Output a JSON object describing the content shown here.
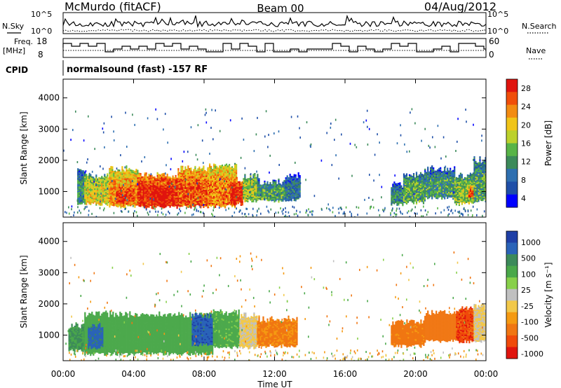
{
  "header": {
    "station": "McMurdo (fitACF)",
    "beam": "Beam 00",
    "date": "04/Aug/2012"
  },
  "strip_labels": {
    "nsky": "N.Sky",
    "nsearch": "N.Search",
    "freq_line1": "Freq.",
    "freq_line2": "[MHz]",
    "nave": "Nave",
    "cpid": "CPID",
    "cpid_value": "normalsound (fast) -157 RF",
    "noise_ticks": [
      "10^5",
      "10^0"
    ],
    "freq_ticks": [
      "18",
      "8"
    ],
    "nave_ticks": [
      "60",
      "0"
    ]
  },
  "colors": {
    "power_scale": [
      "#0000ff",
      "#1f4fa8",
      "#2e6fb0",
      "#3c8a5a",
      "#58b447",
      "#bcd12c",
      "#f0c419",
      "#f28b12",
      "#f04e0a",
      "#e0140e"
    ],
    "velocity_scale": [
      "#1f3fa6",
      "#2a63b8",
      "#3c8a5a",
      "#4aa84a",
      "#88d04a",
      "#c0c0c0",
      "#f2c84a",
      "#f59a12",
      "#f07612",
      "#f04a0a",
      "#e0140e"
    ],
    "ground_scatter": "#bdbdbd"
  },
  "chart_data": [
    {
      "type": "heatmap",
      "name": "power",
      "x_axis": {
        "label": "",
        "ticks": [
          "00:00",
          "04:00",
          "08:00",
          "12:00",
          "16:00",
          "20:00",
          "00:00"
        ],
        "range_hours": [
          0,
          24
        ]
      },
      "y_axis": {
        "label": "Slant Range [km]",
        "ticks": [
          1000,
          2000,
          3000,
          4000
        ],
        "range": [
          180,
          4600
        ]
      },
      "colorbar": {
        "label": "Power [dB]",
        "ticks": [
          "28",
          "24",
          "20",
          "16",
          "12",
          "8",
          "4"
        ],
        "range": [
          0,
          30
        ]
      },
      "regions": [
        {
          "t0": 0.8,
          "t1": 1.2,
          "r0": 600,
          "r1": 1700,
          "level": 10
        },
        {
          "t0": 1.2,
          "t1": 2.6,
          "r0": 600,
          "r1": 1500,
          "level": 18
        },
        {
          "t0": 2.6,
          "t1": 4.2,
          "r0": 520,
          "r1": 1700,
          "level": 22
        },
        {
          "t0": 3.0,
          "t1": 4.0,
          "r0": 650,
          "r1": 1200,
          "level": 27
        },
        {
          "t0": 4.2,
          "t1": 6.5,
          "r0": 500,
          "r1": 1500,
          "level": 28
        },
        {
          "t0": 5.0,
          "t1": 6.0,
          "r0": 600,
          "r1": 1300,
          "level": 30
        },
        {
          "t0": 6.5,
          "t1": 8.2,
          "r0": 520,
          "r1": 1700,
          "level": 25
        },
        {
          "t0": 8.2,
          "t1": 9.8,
          "r0": 520,
          "r1": 1800,
          "level": 23
        },
        {
          "t0": 9.5,
          "t1": 10.2,
          "r0": 600,
          "r1": 1400,
          "level": 28
        },
        {
          "t0": 10.2,
          "t1": 11.0,
          "r0": 700,
          "r1": 1500,
          "level": 16
        },
        {
          "t0": 11.0,
          "t1": 12.6,
          "r0": 700,
          "r1": 1300,
          "level": 12
        },
        {
          "t0": 12.6,
          "t1": 13.4,
          "r0": 750,
          "r1": 1500,
          "level": 8
        },
        {
          "t0": 18.6,
          "t1": 19.3,
          "r0": 600,
          "r1": 1200,
          "level": 10
        },
        {
          "t0": 19.3,
          "t1": 20.5,
          "r0": 650,
          "r1": 1500,
          "level": 13
        },
        {
          "t0": 20.5,
          "t1": 22.2,
          "r0": 800,
          "r1": 1700,
          "level": 11
        },
        {
          "t0": 22.2,
          "t1": 23.3,
          "r0": 600,
          "r1": 1500,
          "level": 15
        },
        {
          "t0": 23.0,
          "t1": 23.6,
          "r0": 800,
          "r1": 1100,
          "level": 26
        },
        {
          "t0": 23.3,
          "t1": 24.0,
          "r0": 700,
          "r1": 2000,
          "level": 12
        }
      ]
    },
    {
      "type": "heatmap",
      "name": "velocity",
      "x_axis": {
        "label": "Time UT",
        "ticks": [
          "00:00",
          "04:00",
          "08:00",
          "12:00",
          "16:00",
          "20:00",
          "00:00"
        ],
        "range_hours": [
          0,
          24
        ]
      },
      "y_axis": {
        "label": "Slant Range [km]",
        "ticks": [
          1000,
          2000,
          3000,
          4000
        ],
        "range": [
          180,
          4600
        ]
      },
      "colorbar": {
        "label": "Velocity [m s⁻¹]",
        "ticks": [
          "1000",
          "500",
          "100",
          "25",
          "-25",
          "-100",
          "-500",
          "-1000"
        ],
        "range": [
          -1200,
          1200
        ]
      },
      "regions": [
        {
          "t0": 0.3,
          "t1": 1.2,
          "r0": 500,
          "r1": 1300,
          "level": 300
        },
        {
          "t0": 1.2,
          "t1": 8.5,
          "r0": 400,
          "r1": 1650,
          "level": 200
        },
        {
          "t0": 1.4,
          "t1": 2.2,
          "r0": 600,
          "r1": 1300,
          "level": 700
        },
        {
          "t0": 7.3,
          "t1": 8.8,
          "r0": 700,
          "r1": 1600,
          "level": 800
        },
        {
          "t0": 8.5,
          "t1": 10.0,
          "r0": 600,
          "r1": 1700,
          "level": 150
        },
        {
          "t0": 10.0,
          "t1": 11.0,
          "r0": 600,
          "r1": 1600,
          "level": 20
        },
        {
          "t0": 11.0,
          "t1": 13.3,
          "r0": 650,
          "r1": 1500,
          "level": -120
        },
        {
          "t0": 18.6,
          "t1": 20.5,
          "r0": 650,
          "r1": 1400,
          "level": -150
        },
        {
          "t0": 20.5,
          "t1": 22.3,
          "r0": 800,
          "r1": 1700,
          "level": -200
        },
        {
          "t0": 22.3,
          "t1": 23.3,
          "r0": 800,
          "r1": 1800,
          "level": -400
        },
        {
          "t0": 23.3,
          "t1": 24.0,
          "r0": 800,
          "r1": 1900,
          "level": 20
        }
      ]
    }
  ]
}
